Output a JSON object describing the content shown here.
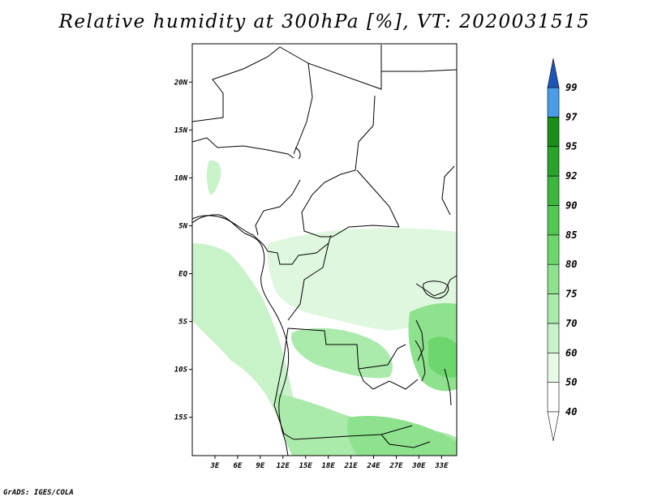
{
  "title": "Relative humidity at 300hPa [%], VT: 2020031515",
  "credit": "GrADS: IGES/COLA",
  "map": {
    "lon_range": [
      0,
      35
    ],
    "lat_range": [
      -19,
      24
    ],
    "lon_ticks": [
      {
        "value": 3,
        "label": "3E"
      },
      {
        "value": 6,
        "label": "6E"
      },
      {
        "value": 9,
        "label": "9E"
      },
      {
        "value": 12,
        "label": "12E"
      },
      {
        "value": 15,
        "label": "15E"
      },
      {
        "value": 18,
        "label": "18E"
      },
      {
        "value": 21,
        "label": "21E"
      },
      {
        "value": 24,
        "label": "24E"
      },
      {
        "value": 27,
        "label": "27E"
      },
      {
        "value": 30,
        "label": "30E"
      },
      {
        "value": 33,
        "label": "33E"
      }
    ],
    "lat_ticks": [
      {
        "value": 20,
        "label": "20N"
      },
      {
        "value": 15,
        "label": "15N"
      },
      {
        "value": 10,
        "label": "10N"
      },
      {
        "value": 5,
        "label": "5N"
      },
      {
        "value": 0,
        "label": "EQ"
      },
      {
        "value": -5,
        "label": "5S"
      },
      {
        "value": -10,
        "label": "10S"
      },
      {
        "value": -15,
        "label": "15S"
      }
    ]
  },
  "colorbar": {
    "levels": [
      {
        "label": "40",
        "color": "#ffffff"
      },
      {
        "label": "50",
        "color": "#e6fae6"
      },
      {
        "label": "60",
        "color": "#c8f2c8"
      },
      {
        "label": "70",
        "color": "#aaeaaa"
      },
      {
        "label": "75",
        "color": "#8ee28e"
      },
      {
        "label": "80",
        "color": "#6cd66c"
      },
      {
        "label": "85",
        "color": "#52c852"
      },
      {
        "label": "90",
        "color": "#3cb63c"
      },
      {
        "label": "92",
        "color": "#2aa32a"
      },
      {
        "label": "95",
        "color": "#1a8e1a"
      },
      {
        "label": "97",
        "color": "#4a9ce6"
      },
      {
        "label": "99",
        "color": "#2b6fd0"
      }
    ],
    "top_color": "#1c55b8",
    "bottom_color": "#ffffff"
  }
}
